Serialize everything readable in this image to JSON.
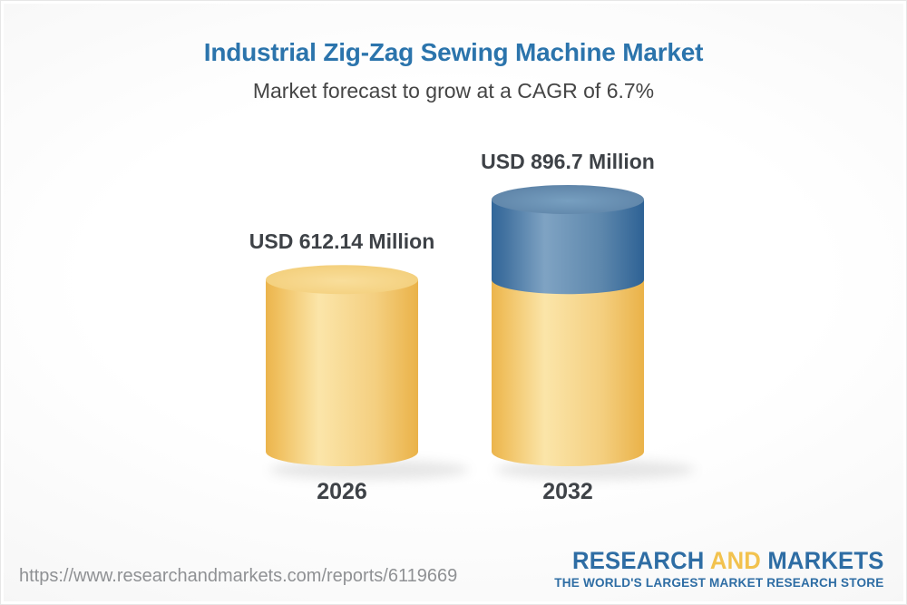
{
  "header": {
    "title": "Industrial Zig-Zag Sewing Machine Market",
    "subtitle": "Market forecast to grow at a CAGR of 6.7%"
  },
  "chart_data": {
    "type": "bar",
    "style": "3d-cylinder",
    "categories": [
      "2026",
      "2032"
    ],
    "values": [
      612.14,
      896.7
    ],
    "value_labels": [
      "USD 612.14 Million",
      "USD 896.7 Million"
    ],
    "unit": "USD Million",
    "cagr": "6.7%",
    "title": "Industrial Zig-Zag Sewing Machine Market",
    "subtitle": "Market forecast to grow at a CAGR of 6.7%",
    "xlabel": "",
    "ylabel": "",
    "ylim": [
      0,
      896.7
    ],
    "grid": false,
    "legend": false,
    "notes": "2032 cylinder shows growth above the 2026 level as a blue segment"
  },
  "colors": {
    "title_blue": "#2B74AC",
    "bar_yellow": "#F5CF7F",
    "growth_blue": "#4F7EA8",
    "text_dark": "#3E4247",
    "url_gray": "#8F9194",
    "logo_blue": "#2E6DA4",
    "logo_yellow": "#F2C24E"
  },
  "footer": {
    "url": "https://www.researchandmarkets.com/reports/6119669",
    "logo": {
      "word1": "RESEARCH",
      "word2": "AND",
      "word3": "MARKETS",
      "tagline": "THE WORLD'S LARGEST MARKET RESEARCH STORE"
    }
  }
}
